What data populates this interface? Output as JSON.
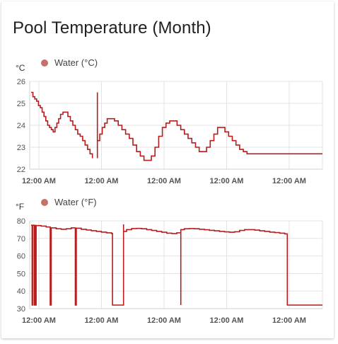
{
  "card": {
    "title": "Pool Temperature (Month)"
  },
  "colors": {
    "series": "#b71c1c",
    "legend_dot": "#c6706a",
    "grid": "#e3e3e3"
  },
  "chart_data": [
    {
      "type": "line",
      "unit": "°C",
      "legend": [
        "Water (°C)"
      ],
      "legend_placement": "top-left",
      "grid": true,
      "ylim": [
        22,
        26
      ],
      "yticks": [
        "26",
        "25",
        "24",
        "23",
        "22"
      ],
      "xticks": [
        "12:00 AM",
        "12:00 AM",
        "12:00 AM",
        "12:00 AM",
        "12:00 AM"
      ],
      "series": [
        {
          "name": "Water (°C)",
          "t": [
            0,
            0.02,
            0.04,
            0.07,
            0.09,
            0.11,
            0.13,
            0.15,
            0.18,
            0.2,
            0.22,
            0.24,
            0.26,
            0.28,
            0.3,
            0.33,
            0.35,
            0.37,
            0.4,
            0.44,
            0.48,
            0.52,
            0.56,
            0.6,
            0.64,
            0.68,
            0.72,
            0.76,
            0.8,
            0.84,
            0.88,
            0.92,
            0.96,
            1.0,
            1.04,
            1.07,
            1.1,
            1.13,
            1.17,
            1.2,
            1.23,
            1.27,
            1.3,
            1.33,
            1.37,
            1.4,
            1.44,
            1.48,
            1.52,
            1.56,
            1.6,
            1.64,
            1.68,
            1.72,
            1.76,
            1.8,
            1.84,
            1.88,
            1.92,
            1.96,
            2.0,
            2.04,
            2.08,
            2.12,
            2.16,
            2.2,
            2.24,
            2.28,
            2.32,
            2.36,
            2.4,
            2.44,
            2.48,
            2.52,
            2.56,
            2.6,
            2.64,
            2.68,
            2.72,
            2.76,
            2.8,
            2.84,
            2.88,
            2.92,
            2.96,
            3.0,
            3.04,
            3.08,
            3.12,
            3.16,
            3.2,
            3.24,
            3.28,
            3.32,
            3.36,
            3.4,
            3.44,
            3.48,
            3.52,
            3.56,
            3.6,
            3.64,
            3.68,
            3.72,
            3.76,
            3.8,
            3.84,
            3.88,
            3.92,
            3.96,
            4.0,
            4.04,
            4.1,
            4.2,
            4.4,
            4.6,
            4.7
          ],
          "v": [
            25.5,
            25.3,
            25.2,
            25.1,
            25.0,
            24.9,
            24.8,
            24.6,
            24.4,
            24.3,
            24.1,
            24.0,
            23.9,
            23.9,
            23.8,
            23.7,
            23.8,
            24.0,
            24.3,
            24.5,
            24.6,
            24.6,
            24.4,
            24.2,
            24.0,
            23.8,
            23.6,
            23.5,
            23.3,
            23.1,
            22.9,
            22.7,
            22.6,
            22.5,
            null,
            null,
            null,
            null,
            null,
            null,
            null,
            null,
            null,
            null,
            null,
            null,
            null,
            null,
            null,
            null,
            null,
            null,
            null,
            null,
            null,
            null,
            null,
            null,
            null,
            null,
            null,
            null,
            null,
            null,
            null,
            null,
            null,
            null,
            null,
            null,
            null,
            null,
            null,
            null,
            null,
            null,
            null,
            null,
            null,
            null,
            null,
            null,
            null,
            null,
            null,
            null,
            null,
            null,
            null,
            null,
            null,
            null,
            null,
            null,
            null,
            null,
            null,
            null,
            null,
            null,
            null,
            null,
            null,
            null,
            null,
            null,
            null,
            null,
            null,
            null,
            null,
            null,
            null,
            null,
            null,
            null,
            null
          ]
        }
      ]
    },
    {
      "type": "line",
      "unit": "°F",
      "legend": [
        "Water (°F)"
      ],
      "legend_placement": "top-left",
      "grid": true,
      "ylim": [
        30,
        80
      ],
      "yticks": [
        "80",
        "70",
        "60",
        "50",
        "40",
        "30"
      ],
      "xticks": [
        "12:00 AM",
        "12:00 AM",
        "12:00 AM",
        "12:00 AM",
        "12:00 AM"
      ],
      "series": [
        {
          "name": "Water (°F)"
        }
      ]
    }
  ],
  "series_points": {
    "celsius": [
      [
        0.0,
        25.5
      ],
      [
        0.03,
        25.3
      ],
      [
        0.06,
        25.2
      ],
      [
        0.09,
        25.1
      ],
      [
        0.12,
        24.9
      ],
      [
        0.15,
        24.8
      ],
      [
        0.18,
        24.6
      ],
      [
        0.21,
        24.4
      ],
      [
        0.24,
        24.2
      ],
      [
        0.27,
        24.0
      ],
      [
        0.3,
        23.9
      ],
      [
        0.33,
        23.8
      ],
      [
        0.36,
        23.7
      ],
      [
        0.39,
        23.9
      ],
      [
        0.42,
        24.1
      ],
      [
        0.45,
        24.3
      ],
      [
        0.48,
        24.5
      ],
      [
        0.52,
        24.6
      ],
      [
        0.56,
        24.6
      ],
      [
        0.6,
        24.4
      ],
      [
        0.64,
        24.2
      ],
      [
        0.68,
        24.0
      ],
      [
        0.72,
        23.8
      ],
      [
        0.76,
        23.6
      ],
      [
        0.8,
        23.5
      ],
      [
        0.84,
        23.3
      ],
      [
        0.88,
        23.1
      ],
      [
        0.92,
        22.9
      ],
      [
        0.96,
        22.7
      ],
      [
        1.0,
        22.5
      ],
      [
        1.08,
        22.5
      ],
      [
        1.08,
        25.5
      ],
      [
        1.08,
        23.3
      ],
      [
        1.12,
        23.6
      ],
      [
        1.16,
        23.9
      ],
      [
        1.2,
        24.1
      ],
      [
        1.24,
        24.3
      ],
      [
        1.3,
        24.3
      ],
      [
        1.36,
        24.2
      ],
      [
        1.42,
        24.0
      ],
      [
        1.48,
        23.8
      ],
      [
        1.54,
        23.6
      ],
      [
        1.6,
        23.4
      ],
      [
        1.66,
        23.1
      ],
      [
        1.72,
        22.8
      ],
      [
        1.78,
        22.6
      ],
      [
        1.84,
        22.4
      ],
      [
        1.9,
        22.4
      ],
      [
        1.96,
        22.6
      ],
      [
        2.02,
        23.0
      ],
      [
        2.08,
        23.5
      ],
      [
        2.14,
        23.9
      ],
      [
        2.2,
        24.1
      ],
      [
        2.26,
        24.2
      ],
      [
        2.32,
        24.2
      ],
      [
        2.38,
        24.0
      ],
      [
        2.44,
        23.8
      ],
      [
        2.5,
        23.6
      ],
      [
        2.56,
        23.4
      ],
      [
        2.62,
        23.2
      ],
      [
        2.68,
        23.0
      ],
      [
        2.74,
        22.8
      ],
      [
        2.8,
        22.8
      ],
      [
        2.86,
        23.0
      ],
      [
        2.92,
        23.3
      ],
      [
        2.98,
        23.6
      ],
      [
        3.04,
        23.9
      ],
      [
        3.1,
        23.9
      ],
      [
        3.16,
        23.7
      ],
      [
        3.22,
        23.5
      ],
      [
        3.28,
        23.3
      ],
      [
        3.34,
        23.1
      ],
      [
        3.4,
        22.9
      ],
      [
        3.46,
        22.8
      ],
      [
        3.52,
        22.7
      ],
      [
        3.6,
        22.7
      ],
      [
        3.8,
        22.7
      ],
      [
        4.0,
        22.7
      ],
      [
        4.2,
        22.7
      ],
      [
        4.4,
        22.7
      ],
      [
        4.75,
        22.7
      ]
    ],
    "fahrenheit": [
      [
        0.0,
        77.5
      ],
      [
        0.02,
        77.5
      ],
      [
        0.02,
        32
      ],
      [
        0.03,
        32
      ],
      [
        0.03,
        77.5
      ],
      [
        0.06,
        77.5
      ],
      [
        0.06,
        32
      ],
      [
        0.07,
        32
      ],
      [
        0.07,
        77.4
      ],
      [
        0.09,
        77.4
      ],
      [
        0.09,
        32
      ],
      [
        0.1,
        32
      ],
      [
        0.1,
        77.3
      ],
      [
        0.2,
        77
      ],
      [
        0.3,
        76.5
      ],
      [
        0.38,
        76
      ],
      [
        0.38,
        32
      ],
      [
        0.4,
        32
      ],
      [
        0.4,
        76
      ],
      [
        0.5,
        75.5
      ],
      [
        0.6,
        75.2
      ],
      [
        0.7,
        75.5
      ],
      [
        0.8,
        76
      ],
      [
        0.88,
        76
      ],
      [
        0.88,
        32
      ],
      [
        0.9,
        32
      ],
      [
        0.9,
        75.8
      ],
      [
        1.0,
        75.2
      ],
      [
        1.1,
        74.8
      ],
      [
        1.2,
        74.4
      ],
      [
        1.3,
        74
      ],
      [
        1.4,
        73.6
      ],
      [
        1.5,
        73.2
      ],
      [
        1.6,
        72.8
      ],
      [
        1.62,
        72.6
      ],
      [
        1.62,
        32
      ],
      [
        1.84,
        32
      ],
      [
        1.84,
        78
      ],
      [
        1.84,
        74
      ],
      [
        1.9,
        75
      ],
      [
        2.0,
        75.6
      ],
      [
        2.1,
        75.7
      ],
      [
        2.2,
        75.5
      ],
      [
        2.3,
        75
      ],
      [
        2.4,
        74.5
      ],
      [
        2.5,
        74
      ],
      [
        2.6,
        73.5
      ],
      [
        2.7,
        73
      ],
      [
        2.8,
        72.8
      ],
      [
        2.9,
        73.2
      ],
      [
        2.98,
        74.2
      ],
      [
        2.98,
        32
      ],
      [
        2.98,
        75
      ],
      [
        3.05,
        75.5
      ],
      [
        3.15,
        75.6
      ],
      [
        3.25,
        75.5
      ],
      [
        3.35,
        75.2
      ],
      [
        3.45,
        74.9
      ],
      [
        3.55,
        74.6
      ],
      [
        3.65,
        74.3
      ],
      [
        3.75,
        74
      ],
      [
        3.85,
        73.7
      ],
      [
        3.95,
        73.5
      ],
      [
        4.05,
        73.8
      ],
      [
        4.15,
        74.5
      ],
      [
        4.25,
        75
      ],
      [
        4.35,
        75
      ],
      [
        4.45,
        74.7
      ],
      [
        4.55,
        74.3
      ],
      [
        4.65,
        74
      ],
      [
        4.75,
        73.6
      ],
      [
        4.85,
        73.3
      ],
      [
        4.95,
        73
      ],
      [
        5.05,
        72.6
      ],
      [
        5.1,
        72.5
      ],
      [
        5.1,
        32
      ],
      [
        5.5,
        32
      ],
      [
        5.8,
        32
      ]
    ]
  }
}
